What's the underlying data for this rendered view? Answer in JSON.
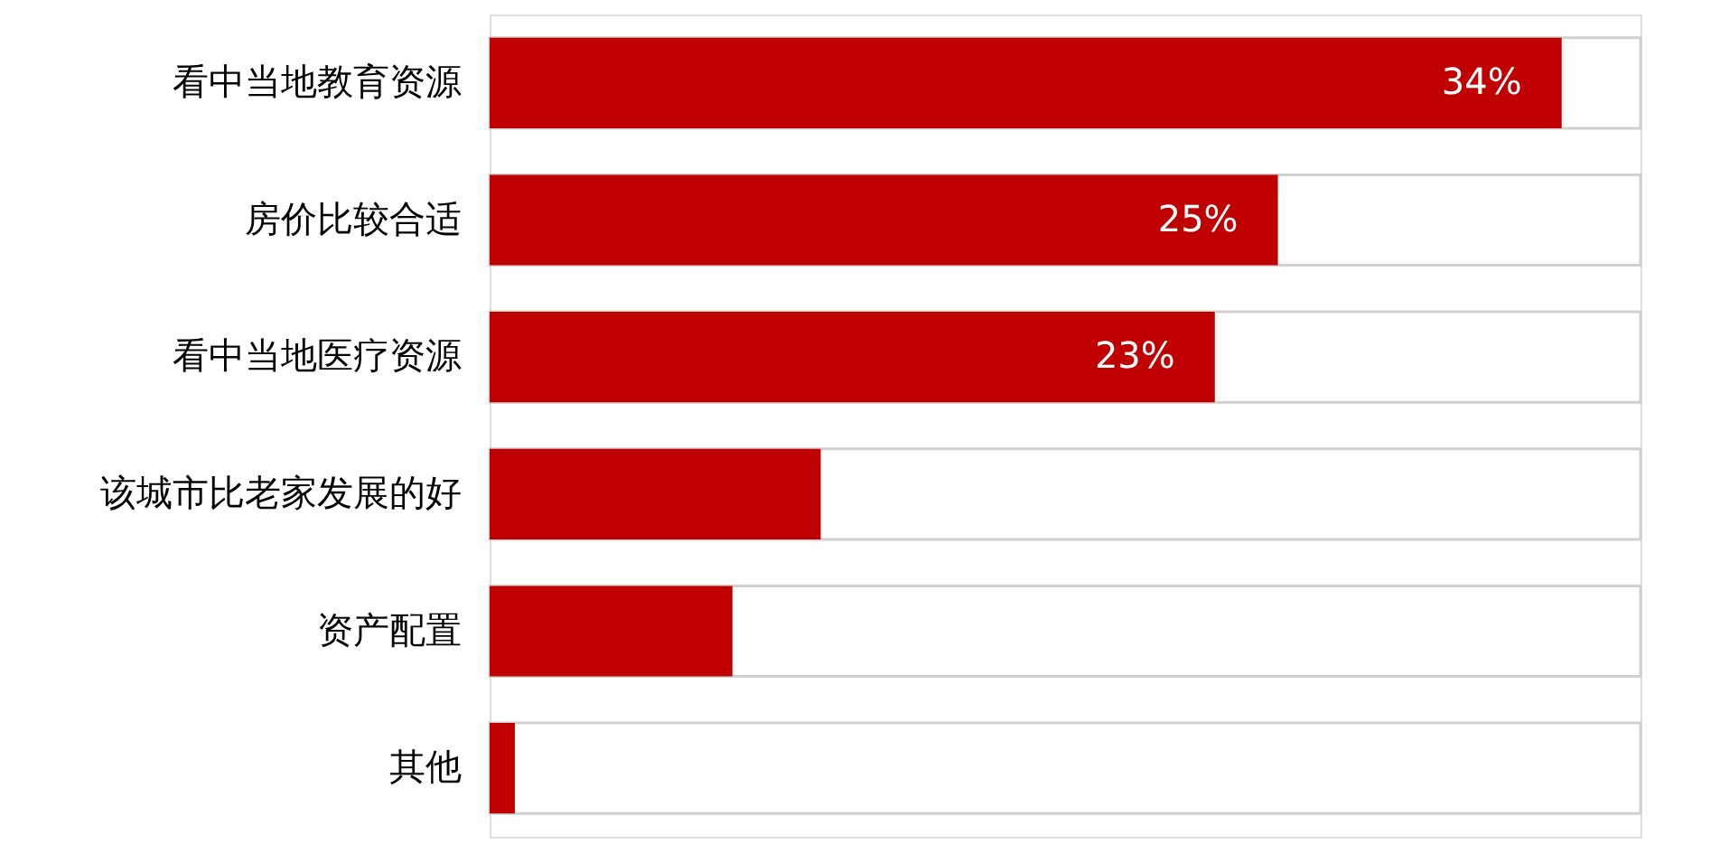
{
  "chart_data": {
    "type": "bar",
    "orientation": "horizontal",
    "categories": [
      "看中当地教育资源",
      "房价比较合适",
      "看中当地医疗资源",
      "该城市比老家发展的好",
      "资产配置",
      "其他"
    ],
    "values": [
      34,
      25,
      23,
      10.5,
      7.7,
      0.8
    ],
    "value_labels": [
      "34%",
      "25%",
      "23%",
      null,
      null,
      null
    ],
    "color": "#c00000",
    "xlim": [
      0,
      36.5
    ],
    "tick_labels": "y",
    "grid": false
  }
}
